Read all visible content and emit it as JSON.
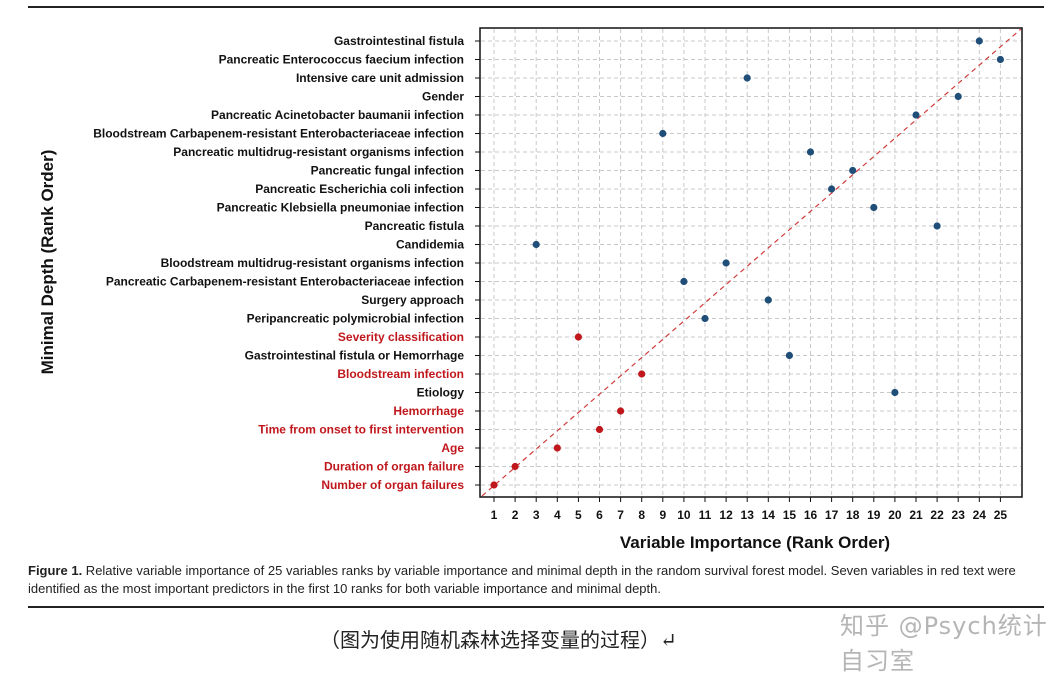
{
  "chart_data": {
    "type": "scatter",
    "xlabel": "Variable Importance (Rank Order)",
    "ylabel": "Minimal Depth (Rank Order)",
    "x_ticks": [
      1,
      2,
      3,
      4,
      5,
      6,
      7,
      8,
      9,
      10,
      11,
      12,
      13,
      14,
      15,
      16,
      17,
      18,
      19,
      20,
      21,
      22,
      23,
      24,
      25
    ],
    "xlim": [
      1,
      25
    ],
    "reference_line": "diagonal dashed red y = x",
    "grid": true,
    "colors": {
      "highlight": "#c0171c",
      "normal": "#1f4e79",
      "diagonal": "#d23c3c"
    },
    "points": [
      {
        "label": "Gastrointestinal fistula",
        "x": 24,
        "highlight": false
      },
      {
        "label": "Pancreatic Enterococcus faecium infection",
        "x": 25,
        "highlight": false
      },
      {
        "label": "Intensive care unit admission",
        "x": 13,
        "highlight": false
      },
      {
        "label": "Gender",
        "x": 23,
        "highlight": false
      },
      {
        "label": "Pancreatic Acinetobacter baumanii infection",
        "x": 21,
        "highlight": false
      },
      {
        "label": "Bloodstream Carbapenem-resistant Enterobacteriaceae infection",
        "x": 9,
        "highlight": false
      },
      {
        "label": "Pancreatic multidrug-resistant organisms infection",
        "x": 16,
        "highlight": false
      },
      {
        "label": "Pancreatic fungal infection",
        "x": 18,
        "highlight": false
      },
      {
        "label": "Pancreatic Escherichia coli infection",
        "x": 17,
        "highlight": false
      },
      {
        "label": "Pancreatic Klebsiella pneumoniae infection",
        "x": 19,
        "highlight": false
      },
      {
        "label": "Pancreatic fistula",
        "x": 22,
        "highlight": false
      },
      {
        "label": "Candidemia",
        "x": 3,
        "highlight": false
      },
      {
        "label": "Bloodstream multidrug-resistant organisms infection",
        "x": 12,
        "highlight": false
      },
      {
        "label": "Pancreatic Carbapenem-resistant Enterobacteriaceae infection",
        "x": 10,
        "highlight": false
      },
      {
        "label": "Surgery approach",
        "x": 14,
        "highlight": false
      },
      {
        "label": "Peripancreatic polymicrobial infection",
        "x": 11,
        "highlight": false
      },
      {
        "label": "Severity classification",
        "x": 5,
        "highlight": true
      },
      {
        "label": "Gastrointestinal fistula or Hemorrhage",
        "x": 15,
        "highlight": false
      },
      {
        "label": "Bloodstream infection",
        "x": 8,
        "highlight": true
      },
      {
        "label": "Etiology",
        "x": 20,
        "highlight": false
      },
      {
        "label": "Hemorrhage",
        "x": 7,
        "highlight": true
      },
      {
        "label": "Time from onset to first intervention",
        "x": 6,
        "highlight": true
      },
      {
        "label": "Age",
        "x": 4,
        "highlight": true
      },
      {
        "label": "Duration of organ failure",
        "x": 2,
        "highlight": true
      },
      {
        "label": "Number of organ failures",
        "x": 1,
        "highlight": true
      }
    ]
  },
  "caption": {
    "lead": "Figure 1.",
    "text": " Relative variable importance of 25 variables ranks by variable importance and minimal depth in the random survival forest model. Seven variables in red text were identified as the most important predictors in the first 10 ranks for both variable importance and minimal depth."
  },
  "watermark": "知乎 @Psych统计自习室",
  "cn_caption": "（图为使用随机森林选择变量的过程）↵"
}
